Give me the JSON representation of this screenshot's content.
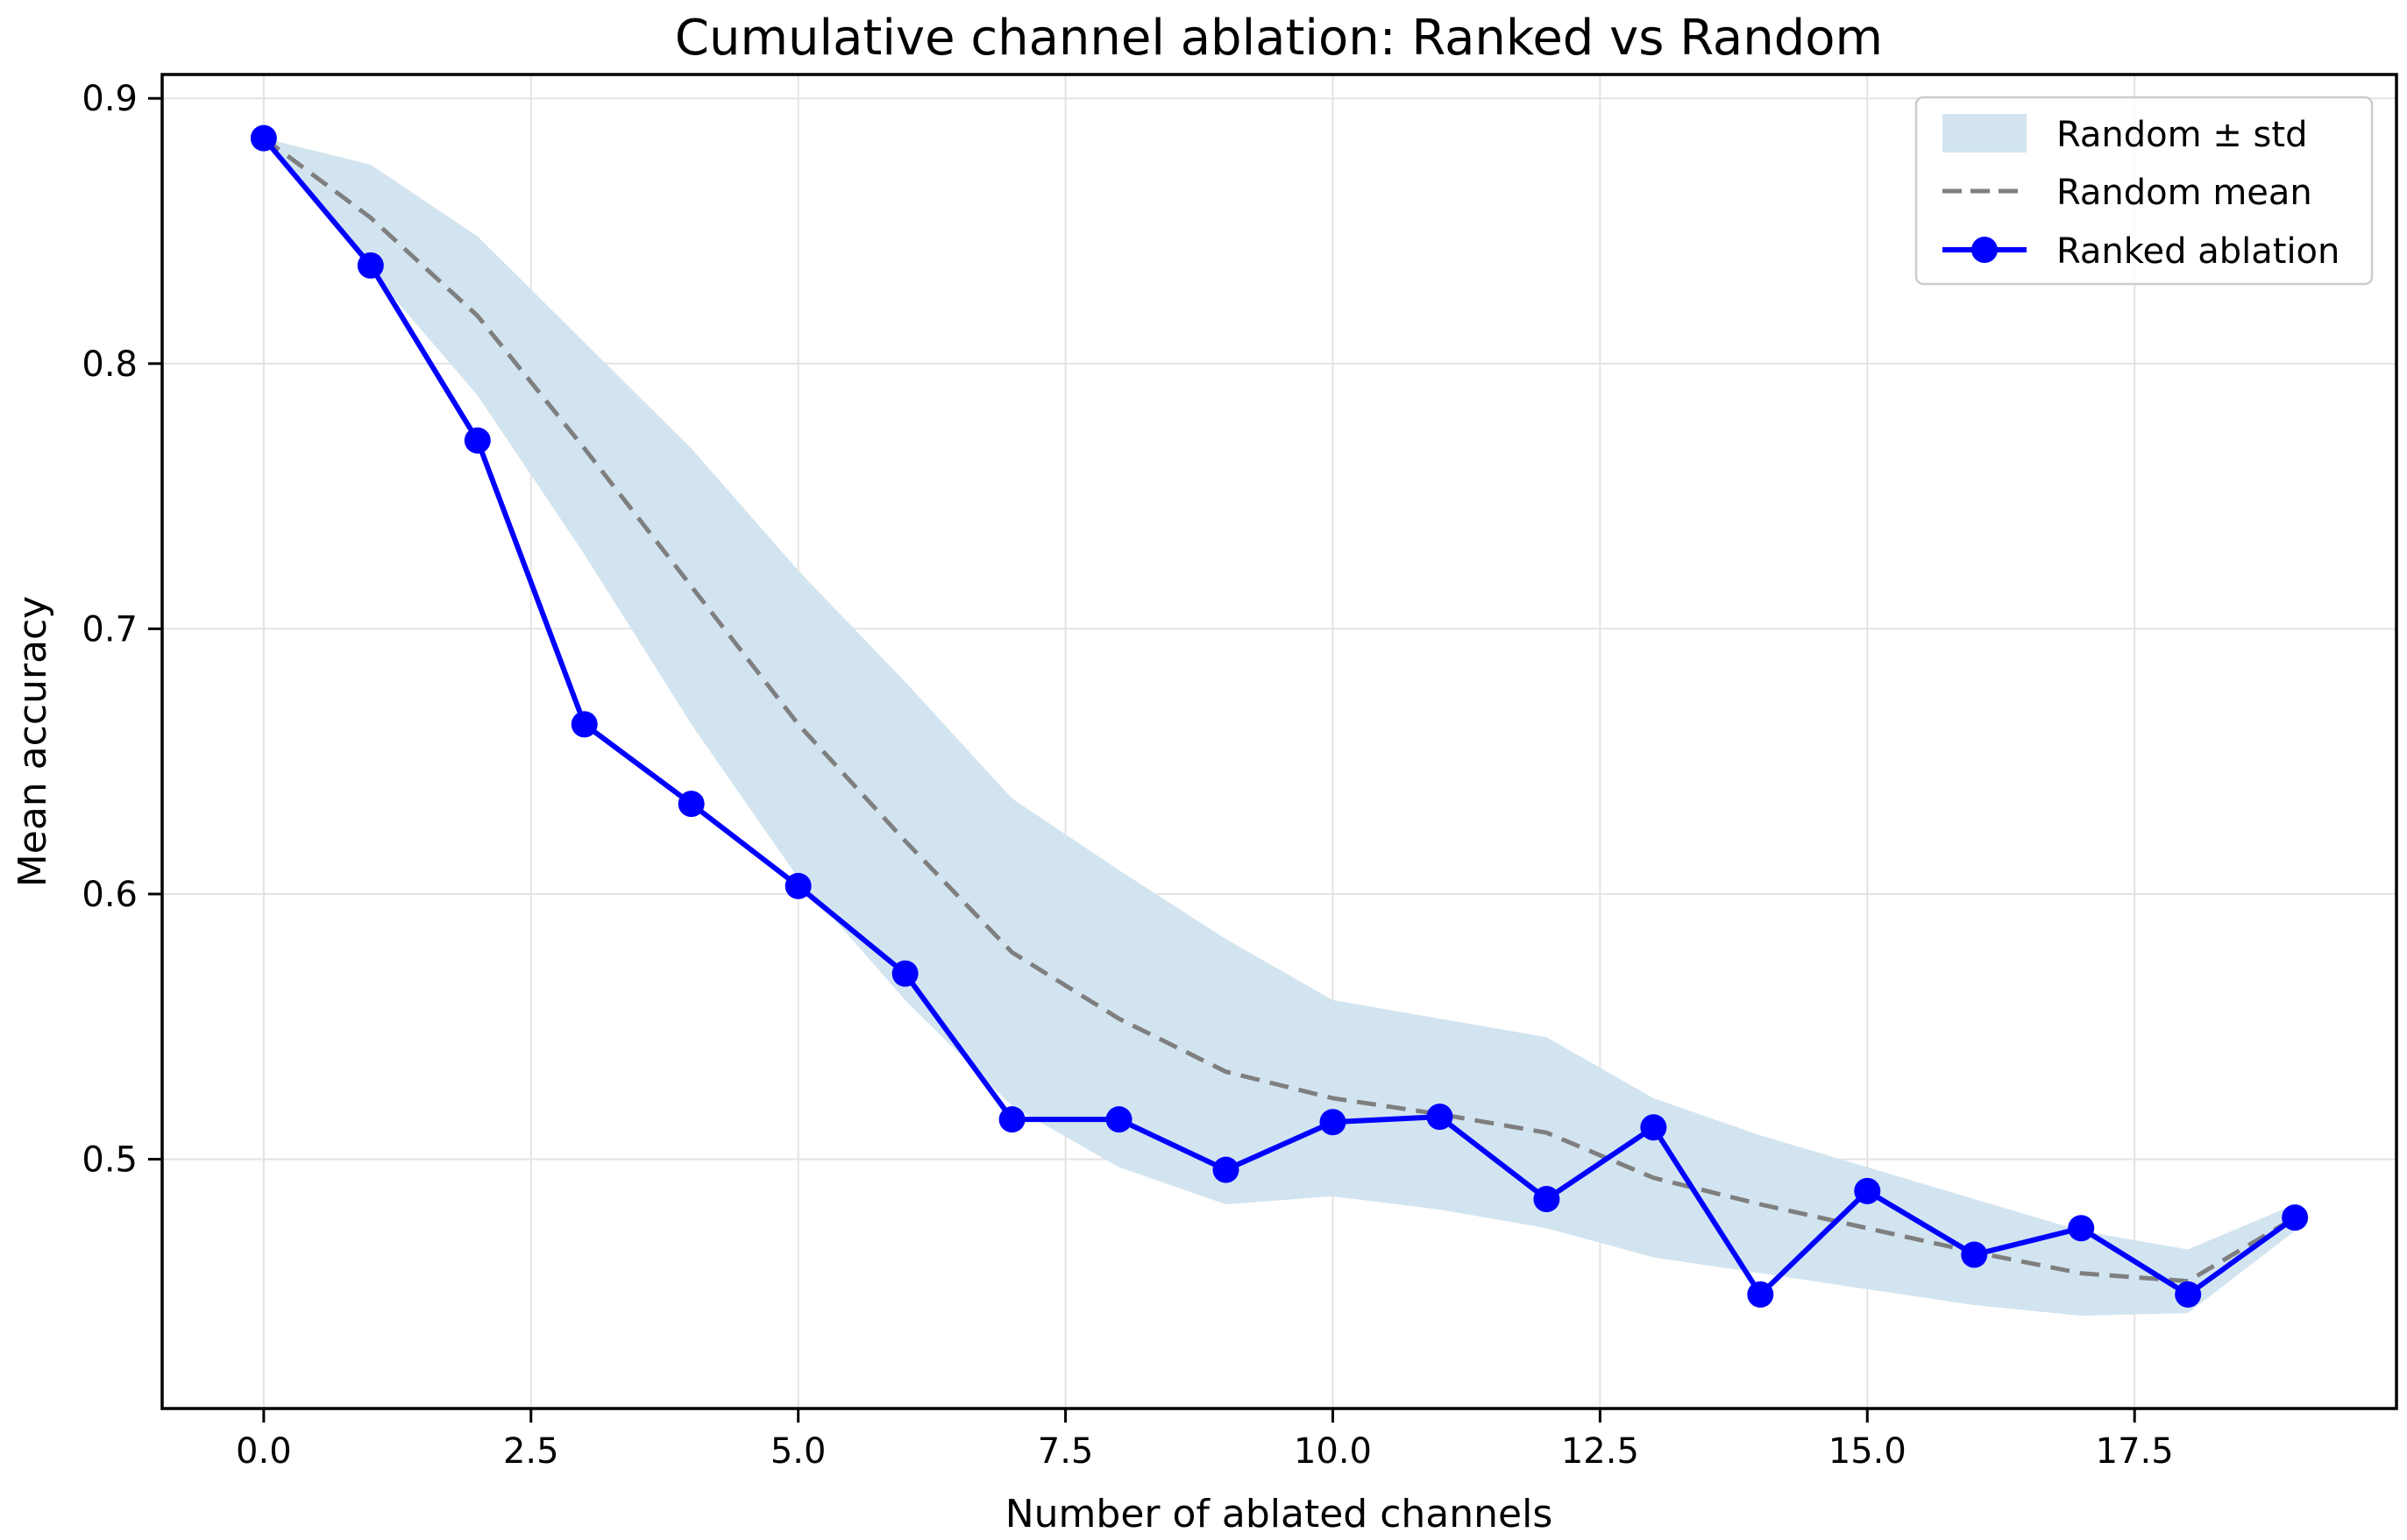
{
  "chart_data": {
    "type": "line",
    "title": "Cumulative channel ablation: Ranked vs Random",
    "xlabel": "Number of ablated channels",
    "ylabel": "Mean accuracy",
    "xlim": [
      -0.95,
      19.95
    ],
    "ylim": [
      0.406,
      0.909
    ],
    "grid": true,
    "x": [
      0,
      1,
      2,
      3,
      4,
      5,
      6,
      7,
      8,
      9,
      10,
      11,
      12,
      13,
      14,
      15,
      16,
      17,
      18,
      19
    ],
    "series": [
      {
        "name": "Ranked ablation",
        "style": "solid-line-with-circle-markers",
        "color": "#0000ff",
        "values": [
          0.885,
          0.837,
          0.771,
          0.664,
          0.634,
          0.603,
          0.57,
          0.515,
          0.515,
          0.496,
          0.514,
          0.516,
          0.485,
          0.512,
          0.449,
          0.488,
          0.464,
          0.474,
          0.449,
          0.478
        ]
      },
      {
        "name": "Random mean",
        "style": "dashed-line",
        "color": "#7f7f7f",
        "values": [
          0.885,
          0.855,
          0.818,
          0.768,
          0.716,
          0.664,
          0.62,
          0.578,
          0.553,
          0.533,
          0.523,
          0.517,
          0.51,
          0.493,
          0.483,
          0.474,
          0.465,
          0.457,
          0.454,
          0.478
        ]
      },
      {
        "name": "Random ± std",
        "style": "filled-band-mean-plus-minus-std",
        "color": "#d2e4f0",
        "std": [
          0.0,
          0.02,
          0.03,
          0.04,
          0.052,
          0.058,
          0.06,
          0.058,
          0.056,
          0.05,
          0.037,
          0.036,
          0.036,
          0.03,
          0.026,
          0.023,
          0.02,
          0.016,
          0.012,
          0.005
        ]
      }
    ],
    "xticks": {
      "values": [
        0,
        2.5,
        5,
        7.5,
        10,
        12.5,
        15,
        17.5
      ],
      "labels": [
        "0.0",
        "2.5",
        "5.0",
        "7.5",
        "10.0",
        "12.5",
        "15.0",
        "17.5"
      ]
    },
    "yticks": {
      "values": [
        0.5,
        0.6,
        0.7,
        0.8,
        0.9
      ],
      "labels": [
        "0.5",
        "0.6",
        "0.7",
        "0.8",
        "0.9"
      ]
    },
    "legend": {
      "position": "upper-right",
      "entries": [
        {
          "label": "Random ± std",
          "swatch": "band-patch"
        },
        {
          "label": "Random mean",
          "swatch": "dashed-line"
        },
        {
          "label": "Ranked ablation",
          "swatch": "line-with-marker"
        }
      ]
    },
    "colors": {
      "ranked_line": "#0000ff",
      "random_mean_line": "#7f7f7f",
      "band_fill": "#d2e4f0",
      "grid": "#e3e3e3",
      "spine": "#000000",
      "legend_border": "#cccccc",
      "background": "#ffffff"
    }
  }
}
